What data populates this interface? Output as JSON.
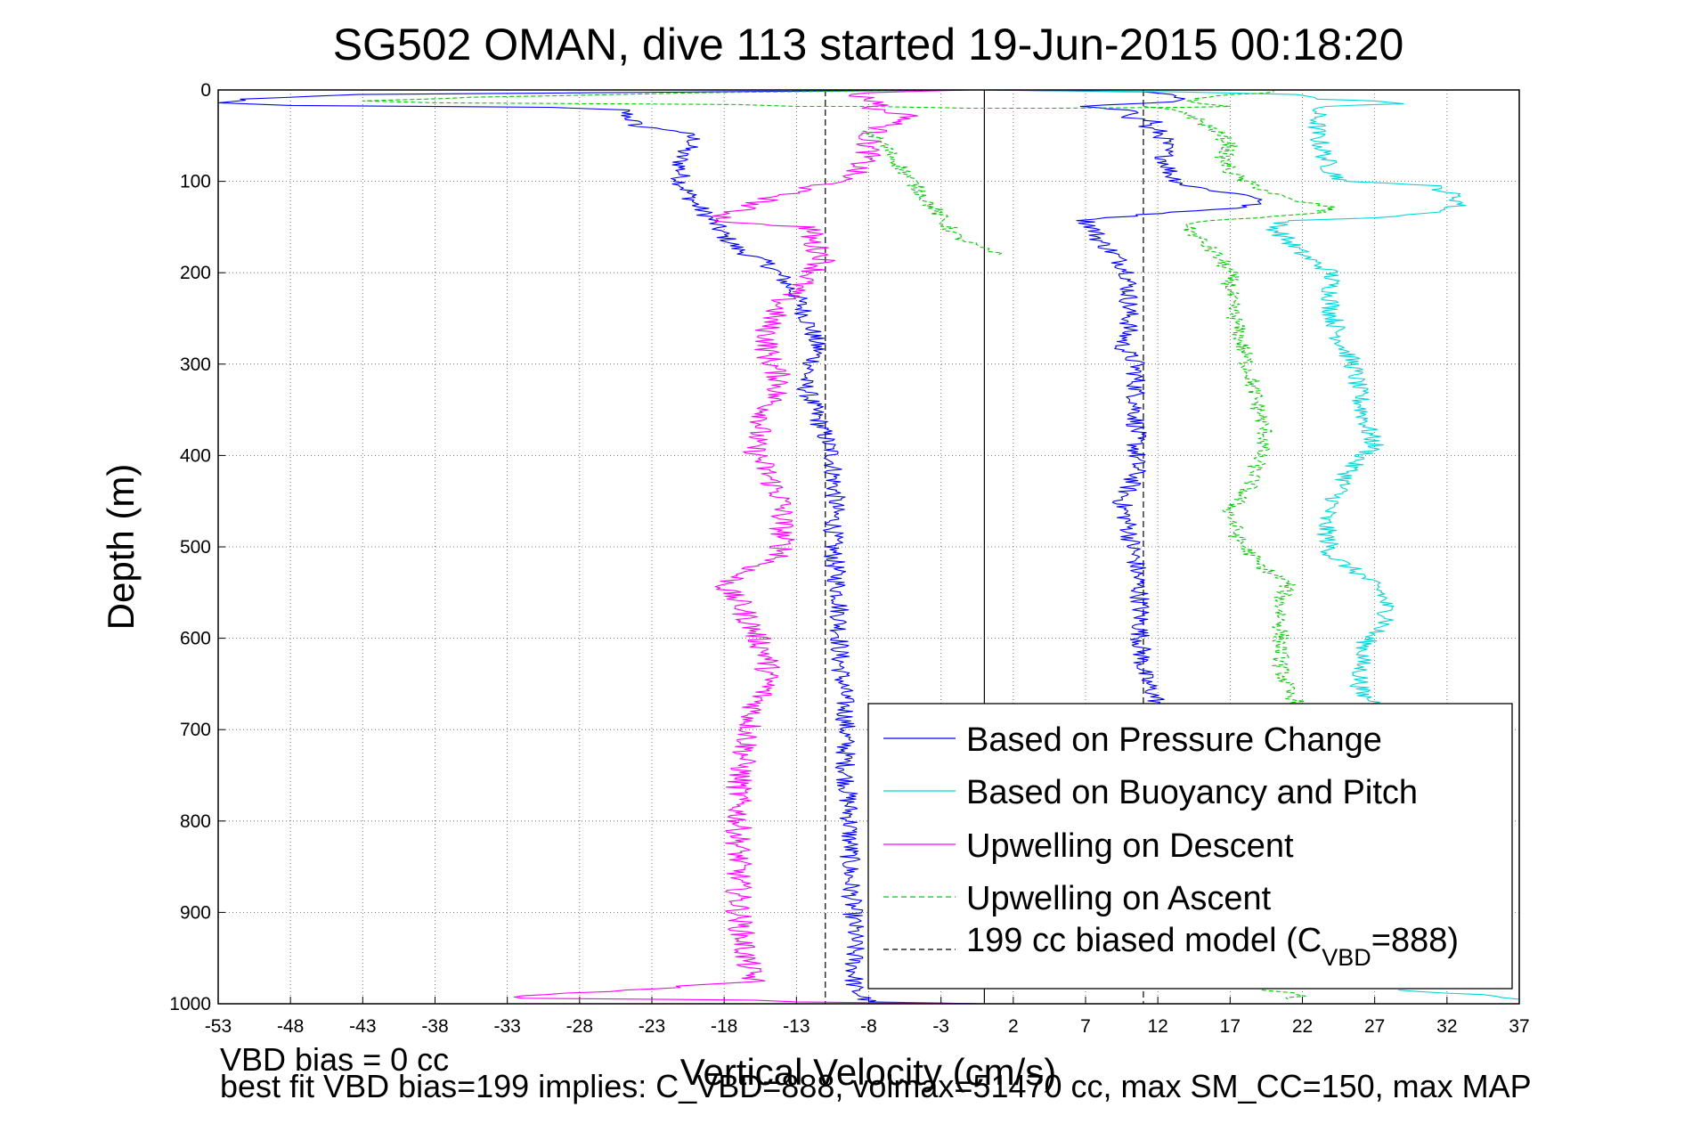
{
  "chart_data": {
    "type": "line",
    "title": "SG502 OMAN, dive 113 started 19-Jun-2015 00:18:20",
    "xlabel": "Vertical Velocity (cm/s)",
    "ylabel": "Depth (m)",
    "xlim": [
      -53,
      37
    ],
    "ylim": [
      1000,
      0
    ],
    "y_reversed": true,
    "grid": true,
    "legend_position": "lower-right",
    "xticks": [
      "-53",
      "-48",
      "-43",
      "-38",
      "-33",
      "-28",
      "-23",
      "-18",
      "-13",
      "-8",
      "-3",
      "2",
      "7",
      "12",
      "17",
      "22",
      "27",
      "32",
      "37"
    ],
    "yticks": [
      "0",
      "100",
      "200",
      "300",
      "400",
      "500",
      "600",
      "700",
      "800",
      "900",
      "1000"
    ],
    "legend": {
      "pressure": "Based on Pressure Change",
      "buoyancy": "Based on Buoyancy and Pitch",
      "descent": "Upwelling on Descent",
      "ascent": "Upwelling on Ascent",
      "model_prefix": "199 cc biased model (C",
      "model_sub": "VBD",
      "model_suffix": "=888)"
    },
    "series": [
      {
        "name": "Based on Pressure Change",
        "color": "#0000ff",
        "style": "solid",
        "noise": 0.7,
        "segments": [
          [
            [
              -1,
              0
            ],
            [
              -44,
              5
            ],
            [
              -51,
              10
            ],
            [
              -53,
              14
            ],
            [
              -48,
              17
            ],
            [
              -30,
              19
            ],
            [
              -25,
              22
            ],
            [
              -24,
              40
            ],
            [
              -21,
              45
            ],
            [
              -20,
              55
            ],
            [
              -21,
              70
            ],
            [
              -21,
              100
            ],
            [
              -20,
              125
            ],
            [
              -19,
              140
            ],
            [
              -18,
              160
            ],
            [
              -17,
              175
            ],
            [
              -15,
              190
            ],
            [
              -14,
              205
            ],
            [
              -13,
              225
            ],
            [
              -12,
              260
            ],
            [
              -11.5,
              285
            ],
            [
              -12.5,
              320
            ],
            [
              -11.5,
              360
            ],
            [
              -10.5,
              400
            ],
            [
              -10.3,
              450
            ],
            [
              -10.5,
              500
            ],
            [
              -10,
              560
            ],
            [
              -10,
              620
            ],
            [
              -9.6,
              680
            ],
            [
              -9.6,
              740
            ],
            [
              -9.3,
              800
            ],
            [
              -9.3,
              860
            ],
            [
              -9,
              920
            ],
            [
              -9,
              985
            ],
            [
              -8,
              998
            ],
            [
              0,
              1000
            ]
          ],
          [
            [
              0,
              0
            ],
            [
              11,
              2
            ],
            [
              13,
              5
            ],
            [
              13.5,
              8
            ],
            [
              13,
              13
            ],
            [
              6,
              18
            ],
            [
              10,
              22
            ],
            [
              11,
              25
            ],
            [
              10,
              30
            ],
            [
              12,
              35
            ],
            [
              11,
              40
            ],
            [
              12,
              45
            ],
            [
              12.5,
              55
            ],
            [
              12.5,
              75
            ],
            [
              13,
              95
            ],
            [
              14,
              105
            ],
            [
              16,
              110
            ],
            [
              18,
              115
            ],
            [
              19.5,
              120
            ],
            [
              18,
              128
            ],
            [
              10,
              138
            ],
            [
              7,
              143
            ],
            [
              7.5,
              150
            ],
            [
              8,
              165
            ],
            [
              9,
              180
            ],
            [
              10,
              200
            ],
            [
              10,
              230
            ],
            [
              10,
              260
            ],
            [
              9.5,
              280
            ],
            [
              10.5,
              300
            ],
            [
              10.5,
              330
            ],
            [
              10.5,
              360
            ],
            [
              10.5,
              390
            ],
            [
              10.5,
              420
            ],
            [
              9.5,
              450
            ],
            [
              10,
              480
            ],
            [
              10.5,
              520
            ],
            [
              10.8,
              560
            ],
            [
              10.8,
              600
            ],
            [
              11,
              640
            ],
            [
              12,
              670
            ],
            [
              13,
              680
            ]
          ]
        ]
      },
      {
        "name": "Based on Buoyancy and Pitch",
        "color": "#00d8d8",
        "style": "solid",
        "noise": 0.7,
        "segments": [
          [
            [
              0,
              0
            ],
            [
              13,
              2
            ],
            [
              22,
              5
            ],
            [
              23,
              10
            ],
            [
              27,
              12
            ],
            [
              29,
              15
            ],
            [
              23,
              18
            ],
            [
              23,
              30
            ],
            [
              23,
              50
            ],
            [
              23.5,
              70
            ],
            [
              24,
              90
            ],
            [
              25,
              100
            ],
            [
              28,
              102
            ],
            [
              31,
              105
            ],
            [
              32.5,
              115
            ],
            [
              33,
              125
            ],
            [
              31,
              135
            ],
            [
              27,
              140
            ],
            [
              21,
              143
            ],
            [
              20,
              150
            ],
            [
              21,
              165
            ],
            [
              22,
              180
            ],
            [
              24,
              200
            ],
            [
              24,
              240
            ],
            [
              24.5,
              270
            ],
            [
              25.5,
              300
            ],
            [
              26,
              340
            ],
            [
              26.5,
              370
            ],
            [
              27,
              390
            ],
            [
              25.5,
              410
            ],
            [
              24.5,
              440
            ],
            [
              23.5,
              470
            ],
            [
              24,
              510
            ],
            [
              26,
              530
            ],
            [
              27.5,
              550
            ],
            [
              28,
              580
            ],
            [
              26.5,
              600
            ],
            [
              26,
              630
            ],
            [
              26,
              660
            ],
            [
              27,
              670
            ],
            [
              28,
              675
            ]
          ],
          [
            [
              29,
              985
            ],
            [
              34,
              990
            ],
            [
              37,
              995
            ]
          ]
        ]
      },
      {
        "name": "Upwelling on Descent",
        "color": "#ff00ff",
        "style": "solid",
        "noise": 0.9,
        "segments": [
          [
            [
              -1,
              0
            ],
            [
              -8,
              3
            ],
            [
              -9,
              5
            ],
            [
              -8,
              10
            ],
            [
              -7,
              15
            ],
            [
              -8,
              20
            ],
            [
              -6,
              25
            ],
            [
              -5,
              30
            ],
            [
              -7,
              40
            ],
            [
              -8,
              50
            ],
            [
              -8,
              70
            ],
            [
              -9,
              90
            ],
            [
              -10,
              100
            ],
            [
              -13,
              110
            ],
            [
              -16,
              125
            ],
            [
              -18,
              138
            ],
            [
              -18,
              145
            ],
            [
              -12,
              150
            ],
            [
              -12,
              165
            ],
            [
              -11,
              185
            ],
            [
              -12.5,
              210
            ],
            [
              -14,
              230
            ],
            [
              -15,
              260
            ],
            [
              -15,
              290
            ],
            [
              -14,
              320
            ],
            [
              -15,
              350
            ],
            [
              -16,
              390
            ],
            [
              -15,
              420
            ],
            [
              -14,
              450
            ],
            [
              -14,
              480
            ],
            [
              -14,
              510
            ],
            [
              -17,
              530
            ],
            [
              -18,
              545
            ],
            [
              -17,
              560
            ],
            [
              -16,
              590
            ],
            [
              -15,
              620
            ],
            [
              -15,
              650
            ],
            [
              -16,
              680
            ],
            [
              -16.5,
              720
            ],
            [
              -17,
              760
            ],
            [
              -17,
              800
            ],
            [
              -17,
              850
            ],
            [
              -17,
              900
            ],
            [
              -16.5,
              950
            ],
            [
              -16,
              975
            ],
            [
              -24,
              985
            ],
            [
              -31,
              990
            ],
            [
              -32,
              994
            ],
            [
              -16,
              996
            ],
            [
              -13,
              998
            ],
            [
              0,
              1000
            ]
          ]
        ]
      },
      {
        "name": "Upwelling on Ascent",
        "color": "#00cc00",
        "style": "dashed",
        "noise": 0.6,
        "segments": [
          [
            [
              -1,
              0
            ],
            [
              -20,
              3
            ],
            [
              -35,
              8
            ],
            [
              -43,
              12
            ],
            [
              -38,
              14
            ],
            [
              -17,
              16
            ],
            [
              -13,
              18
            ],
            [
              -8,
              18
            ],
            [
              -1,
              20
            ],
            [
              5,
              20
            ],
            [
              14,
              19
            ],
            [
              17,
              18
            ],
            [
              15,
              15
            ],
            [
              14,
              12
            ],
            [
              15,
              8
            ],
            [
              20,
              2
            ],
            [
              20,
              0
            ]
          ],
          [
            [
              -8,
              45
            ],
            [
              -7,
              60
            ],
            [
              -6,
              80
            ],
            [
              -5,
              100
            ],
            [
              -4,
              120
            ],
            [
              -3,
              140
            ],
            [
              -2,
              160
            ],
            [
              0,
              175
            ],
            [
              1,
              180
            ]
          ],
          [
            [
              11,
              18
            ],
            [
              12,
              20
            ],
            [
              14,
              25
            ],
            [
              15,
              35
            ],
            [
              16,
              45
            ],
            [
              17,
              60
            ],
            [
              16.5,
              75
            ],
            [
              17,
              90
            ],
            [
              18,
              100
            ],
            [
              19.5,
              110
            ],
            [
              21,
              120
            ],
            [
              24,
              128
            ],
            [
              23,
              135
            ],
            [
              19,
              140
            ],
            [
              15,
              143
            ],
            [
              14,
              150
            ],
            [
              15,
              165
            ],
            [
              16,
              180
            ],
            [
              17,
              200
            ],
            [
              17,
              230
            ],
            [
              17.5,
              260
            ],
            [
              18,
              290
            ],
            [
              18.5,
              320
            ],
            [
              19,
              350
            ],
            [
              19.5,
              380
            ],
            [
              19,
              400
            ],
            [
              18.5,
              430
            ],
            [
              17,
              460
            ],
            [
              17.5,
              490
            ],
            [
              19,
              520
            ],
            [
              21,
              540
            ],
            [
              20.5,
              560
            ],
            [
              20.5,
              580
            ],
            [
              20.5,
              600
            ],
            [
              20.5,
              630
            ],
            [
              21,
              660
            ],
            [
              22,
              675
            ]
          ],
          [
            [
              19,
              985
            ],
            [
              22,
              990
            ],
            [
              21,
              995
            ]
          ]
        ]
      }
    ],
    "reference_lines": [
      {
        "name": "199 cc biased model (CVBD=888)",
        "color": "#000000",
        "style": "dashed",
        "x": -11
      },
      {
        "color": "#000000",
        "style": "dashed",
        "x": 11
      },
      {
        "color": "#000000",
        "style": "solid",
        "x": 0
      }
    ]
  },
  "footer": {
    "line1": "VBD bias = 0 cc",
    "line2": "best fit VBD bias=199 implies: C_VBD=888, volmax=51470 cc, max SM_CC=150, max MAP"
  }
}
